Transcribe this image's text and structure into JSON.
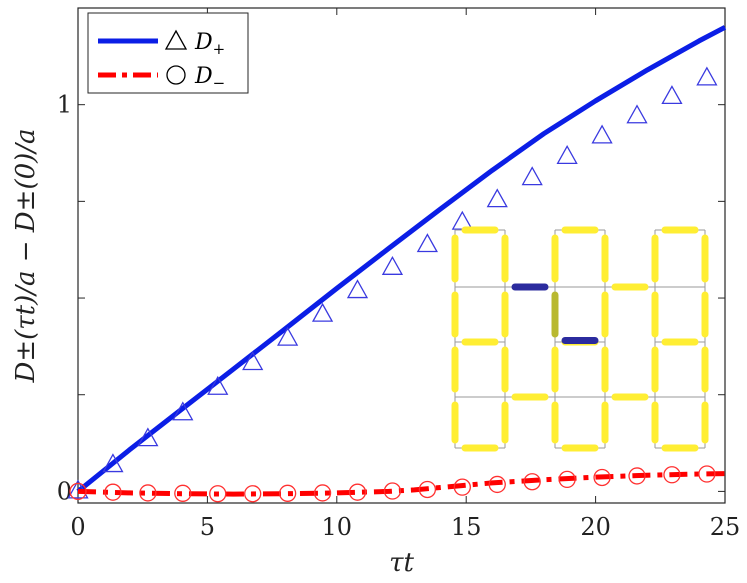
{
  "chart_data": {
    "type": "line",
    "title": "",
    "xlabel": "τt",
    "ylabel": "D±(τt)/a − D±(0)/a",
    "xlim": [
      0,
      25
    ],
    "ylim": [
      -0.03,
      1.25
    ],
    "x_ticks": [
      0,
      5,
      10,
      15,
      20,
      25
    ],
    "x_tick_labels": [
      "0",
      "5",
      "10",
      "15",
      "20",
      "25"
    ],
    "y_ticks": [
      0,
      0.25,
      0.5,
      0.75,
      1.0
    ],
    "y_tick_labels": [
      "0",
      "",
      "",
      "",
      "1"
    ],
    "grid": false,
    "legend_position": "top-left",
    "series": [
      {
        "name": "D+",
        "style": "solid-line",
        "color": "#0b1ee6",
        "x": [
          0,
          2,
          4,
          6,
          8,
          10,
          12,
          14,
          16,
          18,
          20,
          22,
          24,
          25
        ],
        "y": [
          0,
          0.108,
          0.212,
          0.316,
          0.42,
          0.525,
          0.628,
          0.73,
          0.83,
          0.925,
          1.01,
          1.09,
          1.165,
          1.2
        ]
      },
      {
        "name": "△ D+ markers",
        "style": "triangle-markers",
        "color": "#3a3ae0",
        "x": [
          0,
          1.35,
          2.7,
          4.05,
          5.4,
          6.75,
          8.1,
          9.45,
          10.8,
          12.15,
          13.5,
          14.85,
          16.2,
          17.55,
          18.9,
          20.25,
          21.6,
          22.95,
          24.3
        ],
        "y": [
          0,
          0.068,
          0.135,
          0.202,
          0.268,
          0.332,
          0.395,
          0.457,
          0.518,
          0.578,
          0.637,
          0.695,
          0.753,
          0.81,
          0.865,
          0.918,
          0.97,
          1.02,
          1.068
        ]
      },
      {
        "name": "D−",
        "style": "dash-dot-line",
        "color": "#ff0000",
        "x": [
          0,
          2,
          4,
          6,
          8,
          10,
          12,
          13,
          14,
          15,
          16,
          18,
          20,
          22,
          24,
          25
        ],
        "y": [
          0,
          -0.004,
          -0.006,
          -0.007,
          -0.006,
          -0.004,
          0,
          0.004,
          0.01,
          0.016,
          0.022,
          0.03,
          0.037,
          0.042,
          0.045,
          0.046
        ]
      },
      {
        "name": "○ D− markers",
        "style": "circle-markers",
        "color": "#ff3030",
        "x": [
          0,
          1.35,
          2.7,
          4.05,
          5.4,
          6.75,
          8.1,
          9.45,
          10.8,
          12.15,
          13.5,
          14.85,
          16.2,
          17.55,
          18.9,
          20.25,
          21.6,
          22.95,
          24.3
        ],
        "y": [
          0,
          -0.002,
          -0.004,
          -0.005,
          -0.006,
          -0.006,
          -0.005,
          -0.004,
          -0.002,
          0.001,
          0.005,
          0.011,
          0.018,
          0.025,
          0.031,
          0.036,
          0.04,
          0.043,
          0.045
        ]
      }
    ],
    "legend": [
      {
        "line": "solid",
        "color": "#0b1ee6",
        "marker": "triangle",
        "symbol": "△",
        "label_main": "D",
        "label_sub": "+"
      },
      {
        "line": "dash-dot",
        "color": "#ff0000",
        "marker": "circle",
        "symbol": "○",
        "label_main": "D",
        "label_sub": "−"
      }
    ],
    "inset": {
      "description": "lattice diagram",
      "colors": {
        "bond": "#ffee33",
        "dimer": "#2b2b9e",
        "marked": "#b8b830",
        "line": "#9a9a9a"
      }
    }
  }
}
